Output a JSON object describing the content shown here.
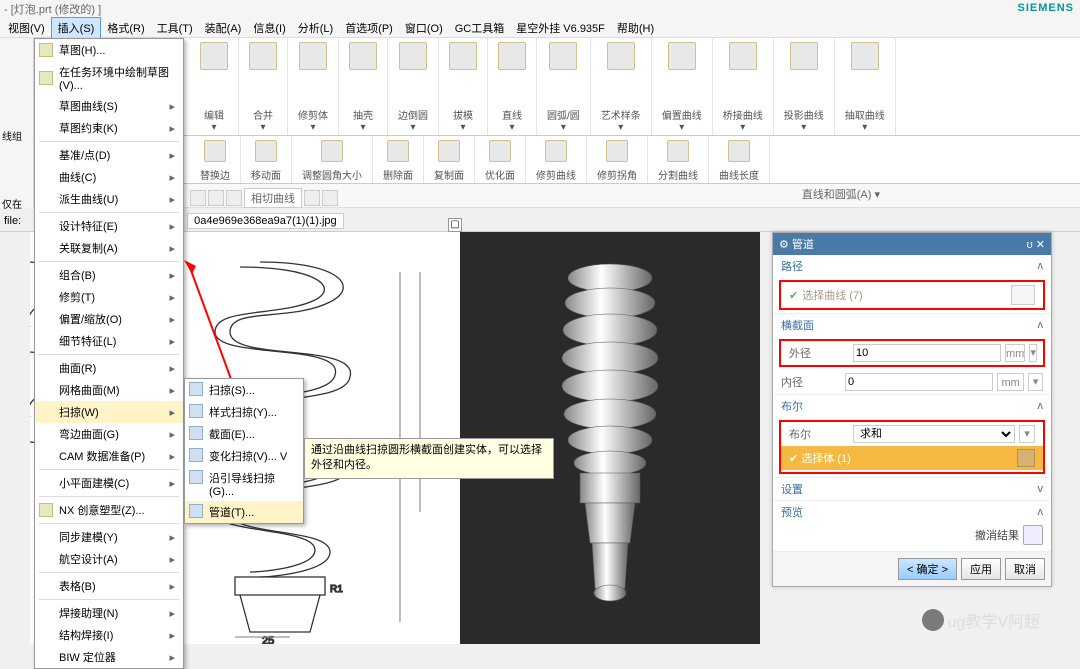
{
  "title": "- [灯泡.prt (修改的) ]",
  "brand": "SIEMENS",
  "menu": [
    "视图(V)",
    "插入(S)",
    "格式(R)",
    "工具(T)",
    "装配(A)",
    "信息(I)",
    "分析(L)",
    "首选项(P)",
    "窗口(O)",
    "GC工具箱",
    "星空外挂 V6.935F",
    "帮助(H)"
  ],
  "menu_active_idx": 1,
  "find_command": "找命令",
  "dropdown": [
    {
      "label": "草图(H)...",
      "ic": 1
    },
    {
      "label": "在任务环境中绘制草图(V)...",
      "ic": 1
    },
    {
      "label": "草图曲线(S)",
      "arrow": 1
    },
    {
      "label": "草图约束(K)",
      "arrow": 1
    },
    {
      "sep": 1
    },
    {
      "label": "基准/点(D)",
      "arrow": 1
    },
    {
      "label": "曲线(C)",
      "arrow": 1
    },
    {
      "label": "派生曲线(U)",
      "arrow": 1
    },
    {
      "sep": 1
    },
    {
      "label": "设计特征(E)",
      "arrow": 1
    },
    {
      "label": "关联复制(A)",
      "arrow": 1
    },
    {
      "sep": 1
    },
    {
      "label": "组合(B)",
      "arrow": 1
    },
    {
      "label": "修剪(T)",
      "arrow": 1
    },
    {
      "label": "偏置/缩放(O)",
      "arrow": 1
    },
    {
      "label": "细节特征(L)",
      "arrow": 1
    },
    {
      "sep": 1
    },
    {
      "label": "曲面(R)",
      "arrow": 1
    },
    {
      "label": "网格曲面(M)",
      "arrow": 1
    },
    {
      "label": "扫掠(W)",
      "arrow": 1,
      "hl": 1
    },
    {
      "label": "弯边曲面(G)",
      "arrow": 1
    },
    {
      "label": "CAM 数据准备(P)",
      "arrow": 1
    },
    {
      "sep": 1
    },
    {
      "label": "小平面建模(C)",
      "arrow": 1
    },
    {
      "sep": 1
    },
    {
      "label": "NX 创意塑型(Z)...",
      "ic": 1
    },
    {
      "sep": 1
    },
    {
      "label": "同步建模(Y)",
      "arrow": 1
    },
    {
      "label": "航空设计(A)",
      "arrow": 1
    },
    {
      "sep": 1
    },
    {
      "label": "表格(B)",
      "arrow": 1
    },
    {
      "sep": 1
    },
    {
      "label": "焊接助理(N)",
      "arrow": 1
    },
    {
      "label": "结构焊接(I)",
      "arrow": 1
    },
    {
      "label": "BIW 定位器",
      "arrow": 1
    }
  ],
  "submenu": [
    {
      "label": "扫掠(S)..."
    },
    {
      "label": "样式扫掠(Y)..."
    },
    {
      "label": "截面(E)..."
    },
    {
      "label": "变化扫掠(V)...    V"
    },
    {
      "label": "沿引导线扫掠(G)..."
    },
    {
      "label": "管道(T)...",
      "hl": 1
    }
  ],
  "tooltip": "通过沿曲线扫掠圆形横截面创建实体，可以选择外径和内径。",
  "ribbon": [
    {
      "lbl": "编辑"
    },
    {
      "lbl": "合并"
    },
    {
      "lbl": "修剪体"
    },
    {
      "lbl": "抽壳"
    },
    {
      "lbl": "边倒圆"
    },
    {
      "lbl": "拔模"
    },
    {
      "lbl": "直线"
    },
    {
      "lbl": "圆弧/圆"
    },
    {
      "lbl": "艺术样条"
    },
    {
      "lbl": "偏置曲线"
    },
    {
      "lbl": "桥接曲线"
    },
    {
      "lbl": "投影曲线"
    },
    {
      "lbl": "抽取曲线"
    }
  ],
  "ribbon2": [
    {
      "lbl": "替换边"
    },
    {
      "lbl": "移动面"
    },
    {
      "lbl": "调整圆角大小"
    },
    {
      "lbl": "删除面"
    },
    {
      "lbl": "复制面"
    },
    {
      "lbl": "优化面"
    },
    {
      "lbl": "修剪曲线"
    },
    {
      "lbl": "修剪拐角"
    },
    {
      "lbl": "分割曲线"
    },
    {
      "lbl": "曲线长度"
    }
  ],
  "secondary_dropdown": "相切曲线",
  "right_toolbar_label": "直线和圆弧(A)",
  "file_tab_prefix": "file:",
  "file_tab": "0a4e969e368ea9a7(1)(1).jpg",
  "tools_label": "工具",
  "panel": {
    "title": "管道",
    "sect_path": "路径",
    "path_select": "选择曲线 (7)",
    "sect_section": "横截面",
    "outer": "外径",
    "outer_val": "10",
    "unit": "mm",
    "inner": "内径",
    "inner_val": "0",
    "sect_bool": "布尔",
    "bool_label": "布尔",
    "bool_val": "求和",
    "select_body": "选择体 (1)",
    "sect_settings": "设置",
    "sect_preview": "预览",
    "undo": "撤消结果",
    "ok": "< 确定 >",
    "apply": "应用",
    "cancel": "取消"
  },
  "watermark": "ug教学V阿超",
  "left_group": "线组",
  "left_only": "仅在"
}
